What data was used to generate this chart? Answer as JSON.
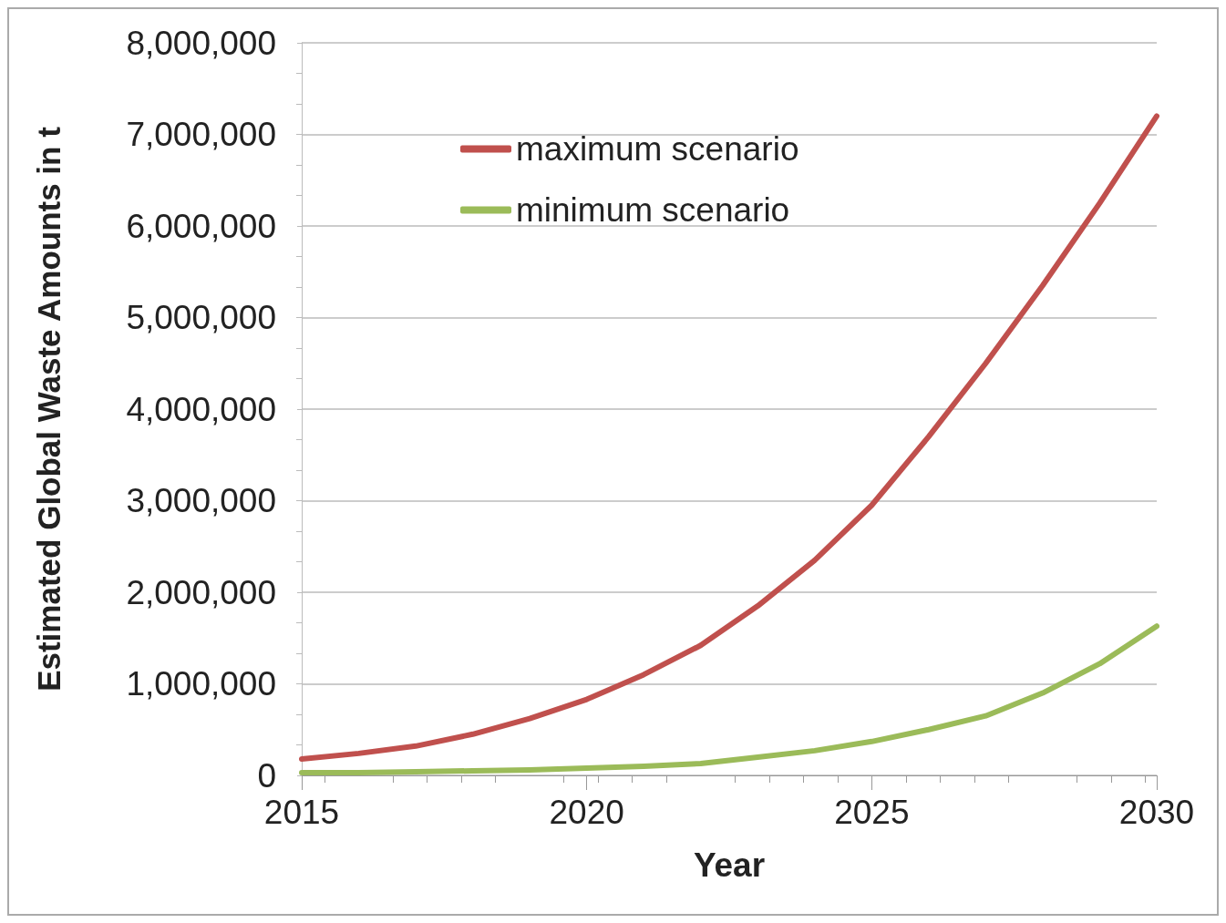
{
  "chart_data": {
    "type": "line",
    "xlabel": "Year",
    "ylabel": "Estimated Global Waste Amounts in t",
    "x": [
      2015,
      2016,
      2017,
      2018,
      2019,
      2020,
      2021,
      2022,
      2023,
      2024,
      2025,
      2026,
      2027,
      2028,
      2029,
      2030
    ],
    "series": [
      {
        "name": "maximum scenario",
        "color": "#c0504d",
        "values": [
          180000,
          240000,
          320000,
          450000,
          620000,
          830000,
          1100000,
          1420000,
          1850000,
          2350000,
          2950000,
          3700000,
          4500000,
          5350000,
          6250000,
          7200000
        ]
      },
      {
        "name": "minimum scenario",
        "color": "#9bbb59",
        "values": [
          30000,
          30000,
          40000,
          50000,
          60000,
          80000,
          100000,
          130000,
          200000,
          270000,
          370000,
          500000,
          650000,
          900000,
          1220000,
          1630000
        ]
      }
    ],
    "xlim": [
      2015,
      2030
    ],
    "xticks": [
      2015,
      2020,
      2025,
      2030
    ],
    "ylim": [
      0,
      8000000
    ],
    "yticks": [
      {
        "value": 0,
        "label": "0"
      },
      {
        "value": 1000000,
        "label": "1,000,000"
      },
      {
        "value": 2000000,
        "label": "2,000,000"
      },
      {
        "value": 3000000,
        "label": "3,000,000"
      },
      {
        "value": 4000000,
        "label": "4,000,000"
      },
      {
        "value": 5000000,
        "label": "5,000,000"
      },
      {
        "value": 6000000,
        "label": "6,000,000"
      },
      {
        "value": 7000000,
        "label": "7,000,000"
      },
      {
        "value": 8000000,
        "label": "8,000,000"
      }
    ],
    "grid": "y",
    "legend": "top left",
    "marker": "none",
    "line_style": "solid"
  }
}
